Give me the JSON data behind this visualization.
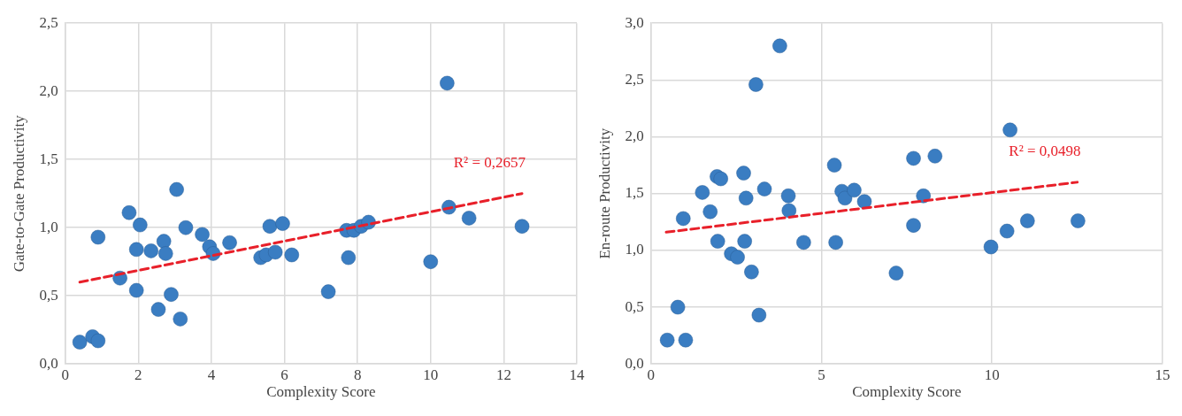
{
  "chart_data": [
    {
      "type": "scatter",
      "xlabel": "Complexity Score",
      "ylabel": "Gate-to-Gate Productivity",
      "xlim": [
        0,
        14
      ],
      "xticks": [
        0,
        2,
        4,
        6,
        8,
        10,
        12,
        14
      ],
      "ylim": [
        0,
        2.5
      ],
      "yticks": [
        {
          "value": 0,
          "label": "0,0"
        },
        {
          "value": 0.5,
          "label": "0,5"
        },
        {
          "value": 1,
          "label": "1,0"
        },
        {
          "value": 1.5,
          "label": "1,5"
        },
        {
          "value": 2,
          "label": "2,0"
        },
        {
          "value": 2.5,
          "label": "2,5"
        }
      ],
      "grid": true,
      "legend": false,
      "annotations": [
        "R² = 0,2657"
      ],
      "series": [
        {
          "type": "scatter",
          "marker": "circle",
          "color": "#3a7dc2",
          "x": [
            0.4,
            0.75,
            0.9,
            0.9,
            1.5,
            1.75,
            1.95,
            1.95,
            2.05,
            2.35,
            2.55,
            2.7,
            2.75,
            2.9,
            3.05,
            3.15,
            3.3,
            3.75,
            3.95,
            4.05,
            4.5,
            5.35,
            5.5,
            5.6,
            5.75,
            5.95,
            6.2,
            7.2,
            7.7,
            7.75,
            7.9,
            8.1,
            8.3,
            10,
            10.45,
            10.5,
            11.05,
            12.5
          ],
          "values": [
            0.16,
            0.2,
            0.17,
            0.93,
            0.63,
            1.11,
            0.54,
            0.84,
            1.02,
            0.83,
            0.4,
            0.9,
            0.81,
            0.51,
            1.28,
            0.33,
            1.0,
            0.95,
            0.86,
            0.81,
            0.89,
            0.78,
            0.8,
            1.01,
            0.82,
            1.03,
            0.8,
            0.53,
            0.98,
            0.78,
            0.98,
            1.01,
            1.04,
            0.75,
            2.06,
            1.15,
            1.07,
            1.01
          ]
        },
        {
          "type": "line",
          "marker": "none",
          "line_style": "dashed",
          "color": "#e8202a",
          "x": [
            0.4,
            12.5
          ],
          "values": [
            0.6,
            1.25
          ]
        }
      ]
    },
    {
      "type": "scatter",
      "xlabel": "Complexity Score",
      "ylabel": "En-route Productivity",
      "xlim": [
        0,
        15
      ],
      "xticks": [
        0,
        5,
        10,
        15
      ],
      "ylim": [
        0,
        3
      ],
      "yticks": [
        {
          "value": 0,
          "label": "0,0"
        },
        {
          "value": 0.5,
          "label": "0,5"
        },
        {
          "value": 1,
          "label": "1,0"
        },
        {
          "value": 1.5,
          "label": "1,5"
        },
        {
          "value": 2,
          "label": "2,0"
        },
        {
          "value": 2.5,
          "label": "2,5"
        },
        {
          "value": 3,
          "label": "3,0"
        }
      ],
      "grid": true,
      "legend": false,
      "annotations": [
        "R² = 0,0498"
      ],
      "series": [
        {
          "type": "scatter",
          "marker": "circle",
          "color": "#3a7dc2",
          "x": [
            0.48,
            1.02,
            0.79,
            0.95,
            1.51,
            1.74,
            1.94,
            2.05,
            1.96,
            2.36,
            2.54,
            2.72,
            2.75,
            2.79,
            2.95,
            3.08,
            3.17,
            3.33,
            3.78,
            4.03,
            4.05,
            4.48,
            5.38,
            5.42,
            5.6,
            5.69,
            5.96,
            6.26,
            7.19,
            7.7,
            7.7,
            8.33,
            7.99,
            9.97,
            10.44,
            10.53,
            11.04,
            12.52
          ],
          "values": [
            0.21,
            0.21,
            0.5,
            1.28,
            1.51,
            1.34,
            1.65,
            1.63,
            1.08,
            0.97,
            0.94,
            1.68,
            1.08,
            1.46,
            0.81,
            2.46,
            0.43,
            1.54,
            2.8,
            1.48,
            1.35,
            1.07,
            1.75,
            1.07,
            1.52,
            1.46,
            1.53,
            1.43,
            0.8,
            1.22,
            1.81,
            1.83,
            1.48,
            1.03,
            1.17,
            2.06,
            1.26,
            1.26
          ]
        },
        {
          "type": "line",
          "marker": "none",
          "line_style": "dashed",
          "color": "#e8202a",
          "x": [
            0.45,
            12.5
          ],
          "values": [
            1.16,
            1.6
          ]
        }
      ]
    }
  ]
}
